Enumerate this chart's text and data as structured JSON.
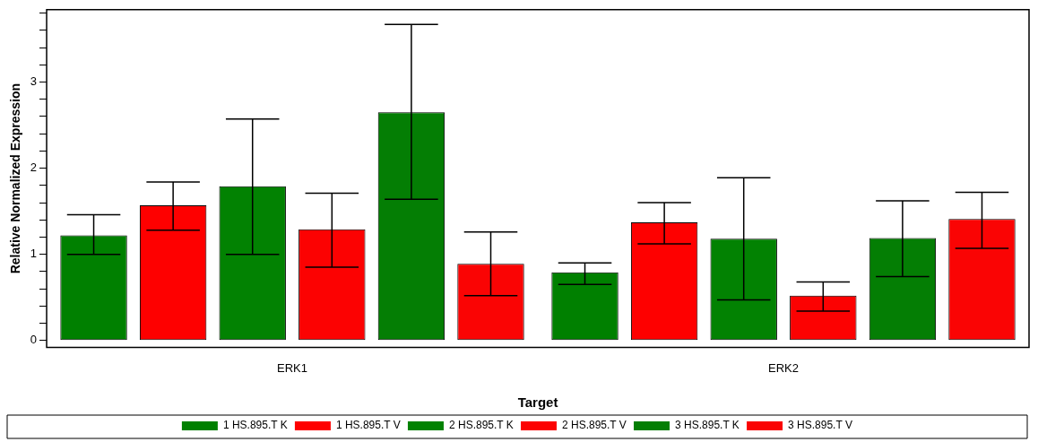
{
  "chart_data": {
    "type": "bar",
    "xlabel": "Target",
    "ylabel": "Relative Normalized Expression",
    "categories": [
      "ERK1",
      "ERK2"
    ],
    "series": [
      {
        "name": "1 HS.895.T K",
        "color": "#008000",
        "values": [
          1.22,
          0.79
        ],
        "errors": [
          [
            1.0,
            1.46
          ],
          [
            0.65,
            0.9
          ]
        ]
      },
      {
        "name": "1 HS.895.T V",
        "color": "#fe0000",
        "values": [
          1.57,
          1.37
        ],
        "errors": [
          [
            1.28,
            1.84
          ],
          [
            1.12,
            1.6
          ]
        ]
      },
      {
        "name": "2 HS.895.T K",
        "color": "#028202",
        "values": [
          1.79,
          1.18
        ],
        "errors": [
          [
            1.0,
            2.57
          ],
          [
            0.47,
            1.89
          ]
        ]
      },
      {
        "name": "2 HS.895.T V",
        "color": "#fc0202",
        "values": [
          1.29,
          0.52
        ],
        "errors": [
          [
            0.85,
            1.71
          ],
          [
            0.34,
            0.68
          ]
        ]
      },
      {
        "name": "3 HS.895.T K",
        "color": "#047e04",
        "values": [
          2.65,
          1.19
        ],
        "errors": [
          [
            1.64,
            3.67
          ],
          [
            0.74,
            1.62
          ]
        ]
      },
      {
        "name": "3 HS.895.T V",
        "color": "#fa0404",
        "values": [
          0.89,
          1.41
        ],
        "errors": [
          [
            0.52,
            1.26
          ],
          [
            1.07,
            1.72
          ]
        ]
      }
    ],
    "ylim": [
      -0.08,
      3.84
    ],
    "yticks": [
      0,
      {
        "value": 0.2,
        "label": null
      },
      {
        "value": 0.4,
        "label": null
      },
      {
        "value": 0.6,
        "label": null
      },
      {
        "value": 0.8,
        "label": null
      },
      1,
      {
        "value": 1.2,
        "label": null
      },
      {
        "value": 1.4,
        "label": null
      },
      {
        "value": 1.6,
        "label": null
      },
      {
        "value": 1.8,
        "label": null
      },
      2,
      {
        "value": 2.2,
        "label": null
      },
      {
        "value": 2.4,
        "label": null
      },
      {
        "value": 2.6,
        "label": null
      },
      {
        "value": 2.8,
        "label": null
      },
      3,
      {
        "value": 3.2,
        "label": null
      },
      {
        "value": 3.4,
        "label": null
      },
      {
        "value": 3.6,
        "label": null
      },
      {
        "value": 3.8,
        "label": null
      }
    ],
    "grid": false,
    "legend": "bottom"
  }
}
